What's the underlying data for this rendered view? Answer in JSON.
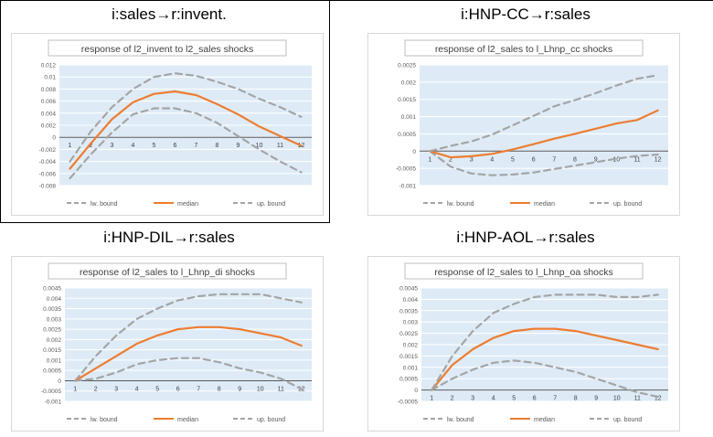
{
  "panels": [
    {
      "heading": "i:sales→r:invent."
    },
    {
      "heading": "i:HNP-CC→r:sales"
    },
    {
      "heading": "i:HNP-DIL→r:sales"
    },
    {
      "heading": "i:HNP-AOL→r:sales"
    }
  ],
  "colors": {
    "median": "#ED7D31",
    "bound": "#A5A5A5",
    "plot_bg": "#DEEBF7",
    "grid": "#ffffff"
  },
  "chart_data": [
    {
      "type": "line",
      "title": "response of l2_invent to l2_sales shocks",
      "x": [
        1,
        2,
        3,
        4,
        5,
        6,
        7,
        8,
        9,
        10,
        11,
        12
      ],
      "ylim": [
        -0.008,
        0.012
      ],
      "yticks": [
        -0.008,
        -0.006,
        -0.004,
        -0.002,
        0,
        0.002,
        0.004,
        0.006,
        0.008,
        0.01,
        0.012
      ],
      "ytick_labels": [
        "-0.008",
        "-0.006",
        "-0.004",
        "-0.002",
        "0",
        "0.002",
        "0.004",
        "0.006",
        "0.008",
        "0.01",
        "0.012"
      ],
      "legend": "bottom",
      "series": [
        {
          "name": "lw. bound",
          "values": [
            -0.0068,
            -0.0028,
            0.0008,
            0.0038,
            0.0048,
            0.0048,
            0.004,
            0.0024,
            0.0002,
            -0.002,
            -0.004,
            -0.0058
          ]
        },
        {
          "name": "median",
          "values": [
            -0.0052,
            -0.001,
            0.003,
            0.0058,
            0.0072,
            0.0076,
            0.007,
            0.0055,
            0.0038,
            0.0018,
            0.0002,
            -0.0014
          ]
        },
        {
          "name": "up. bound",
          "values": [
            -0.004,
            0.001,
            0.005,
            0.008,
            0.01,
            0.0106,
            0.0102,
            0.0092,
            0.008,
            0.0064,
            0.005,
            0.0034
          ]
        }
      ]
    },
    {
      "type": "line",
      "title": "response of l2_sales to l_Lhnp_cc shocks",
      "x": [
        1,
        2,
        3,
        4,
        5,
        6,
        7,
        8,
        9,
        10,
        11,
        12
      ],
      "ylim": [
        -0.001,
        0.0025
      ],
      "yticks": [
        -0.001,
        -0.0005,
        0,
        0.0005,
        0.001,
        0.0015,
        0.002,
        0.0025
      ],
      "ytick_labels": [
        "-0.001",
        "-0.0005",
        "0",
        "0.0005",
        "0.001",
        "0.0015",
        "0.002",
        "0.0025"
      ],
      "legend": "bottom",
      "series": [
        {
          "name": "lw. bound",
          "values": [
            0.0,
            -0.00045,
            -0.00065,
            -0.0007,
            -0.00068,
            -0.00062,
            -0.00052,
            -0.00042,
            -0.00032,
            -0.00022,
            -0.00014,
            -0.0001
          ]
        },
        {
          "name": "median",
          "values": [
            0.0,
            -0.00018,
            -0.00015,
            -8e-05,
            5e-05,
            0.0002,
            0.00036,
            0.0005,
            0.00065,
            0.0008,
            0.0009,
            0.00118
          ]
        },
        {
          "name": "up. bound",
          "values": [
            0.0,
            0.00015,
            0.00028,
            0.00048,
            0.00075,
            0.00102,
            0.0013,
            0.00148,
            0.00168,
            0.0019,
            0.0021,
            0.0022
          ]
        }
      ]
    },
    {
      "type": "line",
      "title": "response of l2_sales to l_Lhnp_di shocks",
      "x": [
        1,
        2,
        3,
        4,
        5,
        6,
        7,
        8,
        9,
        10,
        11,
        12
      ],
      "ylim": [
        -0.001,
        0.0045
      ],
      "yticks": [
        -0.001,
        -0.0005,
        0,
        0.0005,
        0.001,
        0.0015,
        0.002,
        0.0025,
        0.003,
        0.0035,
        0.004,
        0.0045
      ],
      "ytick_labels": [
        "-0.001",
        "-0.0005",
        "0",
        "0.0005",
        "0.001",
        "0.0015",
        "0.002",
        "0.0025",
        "0.003",
        "0.0035",
        "0.004",
        "0.0045"
      ],
      "legend": "bottom",
      "series": [
        {
          "name": "lw. bound",
          "values": [
            0.0,
            0.0001,
            0.0004,
            0.0008,
            0.001,
            0.0011,
            0.0011,
            0.0009,
            0.0006,
            0.0004,
            0.0001,
            -0.0004
          ]
        },
        {
          "name": "median",
          "values": [
            0.0,
            0.0006,
            0.0012,
            0.0018,
            0.0022,
            0.0025,
            0.0026,
            0.0026,
            0.0025,
            0.0023,
            0.0021,
            0.0017
          ]
        },
        {
          "name": "up. bound",
          "values": [
            0.0,
            0.0012,
            0.0022,
            0.003,
            0.0035,
            0.0039,
            0.0041,
            0.0042,
            0.0042,
            0.0042,
            0.004,
            0.0038
          ]
        }
      ]
    },
    {
      "type": "line",
      "title": "response of l2_sales to l_Lhnp_oa shocks",
      "x": [
        1,
        2,
        3,
        4,
        5,
        6,
        7,
        8,
        9,
        10,
        11,
        12
      ],
      "ylim": [
        -0.0005,
        0.0045
      ],
      "yticks": [
        -0.0005,
        0,
        0.0005,
        0.001,
        0.0015,
        0.002,
        0.0025,
        0.003,
        0.0035,
        0.004,
        0.0045
      ],
      "ytick_labels": [
        "-0.0005",
        "0",
        "0.0005",
        "0.001",
        "0.0015",
        "0.002",
        "0.0025",
        "0.003",
        "0.0035",
        "0.004",
        "0.0045"
      ],
      "legend": "bottom",
      "series": [
        {
          "name": "lw. bound",
          "values": [
            0.0,
            0.0005,
            0.0009,
            0.0012,
            0.0013,
            0.0012,
            0.001,
            0.0008,
            0.0005,
            0.0002,
            -0.0001,
            -0.0003
          ]
        },
        {
          "name": "median",
          "values": [
            0.0,
            0.0011,
            0.0018,
            0.0023,
            0.0026,
            0.0027,
            0.0027,
            0.0026,
            0.0024,
            0.0022,
            0.002,
            0.0018
          ]
        },
        {
          "name": "up. bound",
          "values": [
            0.0,
            0.0015,
            0.0026,
            0.0034,
            0.0038,
            0.0041,
            0.0042,
            0.0042,
            0.0042,
            0.0041,
            0.0041,
            0.0042
          ]
        }
      ]
    }
  ]
}
